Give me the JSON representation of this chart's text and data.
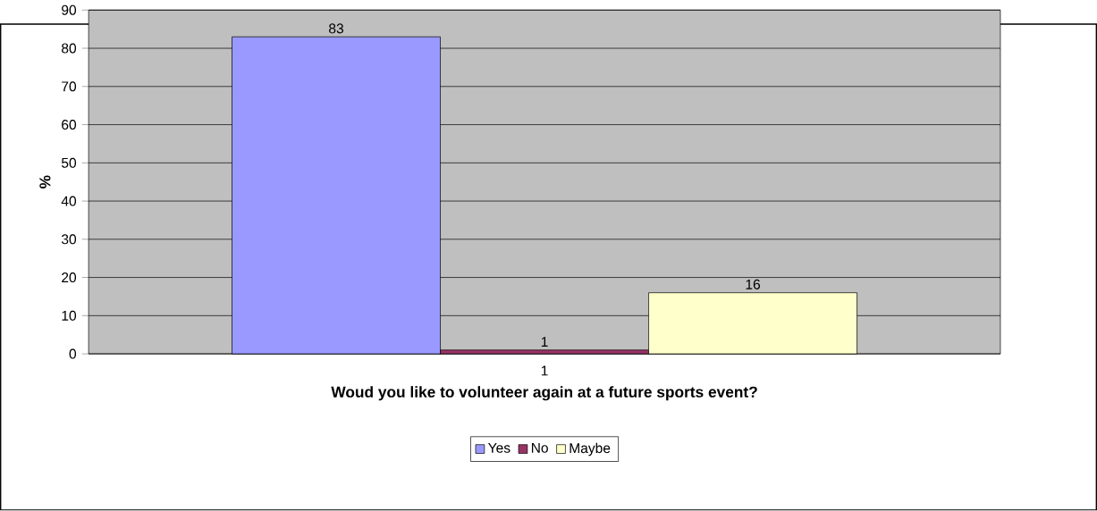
{
  "chart_data": {
    "type": "bar",
    "xlabel": "Woud you like to volunteer again at a future sports event?",
    "ylabel": "%",
    "categories": [
      "1"
    ],
    "series": [
      {
        "name": "Yes",
        "color": "#9999ff",
        "values": [
          83
        ]
      },
      {
        "name": "No",
        "color": "#993366",
        "values": [
          1
        ]
      },
      {
        "name": "Maybe",
        "color": "#ffffcc",
        "values": [
          16
        ]
      }
    ],
    "ylim": [
      0,
      90
    ],
    "yticks": [
      0,
      10,
      20,
      30,
      40,
      50,
      60,
      70,
      80,
      90
    ],
    "grid": "y",
    "legend": "bottom",
    "data_labels": true
  }
}
